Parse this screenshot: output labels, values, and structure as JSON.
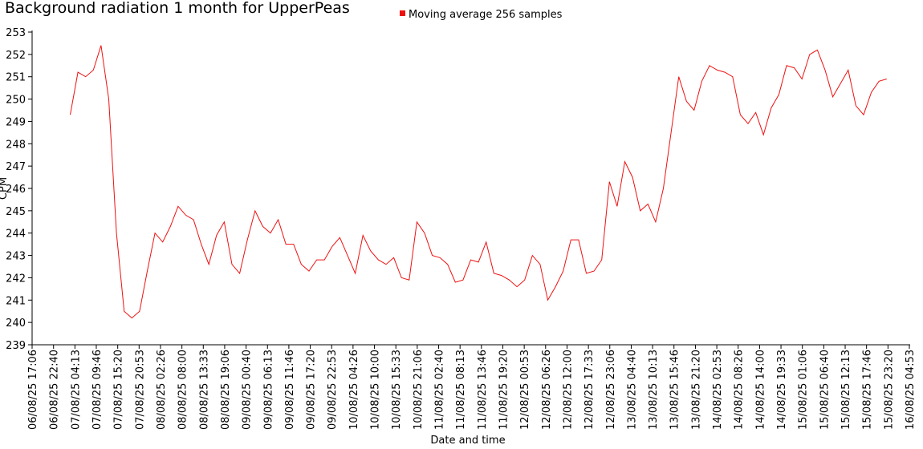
{
  "chart_data": {
    "type": "line",
    "title": "Background radiation 1 month for UpperPeas",
    "xlabel": "Date and time",
    "ylabel": "CPM",
    "series": [
      {
        "name": "Moving average 256 samples",
        "color": "#ee1111",
        "values": [
          249.3,
          251.2,
          251.0,
          251.3,
          252.4,
          250.0,
          244.0,
          240.5,
          240.2,
          240.5,
          242.3,
          244.0,
          243.6,
          244.3,
          245.2,
          244.8,
          244.6,
          243.5,
          242.6,
          243.9,
          244.5,
          242.6,
          242.2,
          243.7,
          245.0,
          244.3,
          244.0,
          244.6,
          243.5,
          243.5,
          242.6,
          242.3,
          242.8,
          242.8,
          243.4,
          243.8,
          243.0,
          242.2,
          243.9,
          243.2,
          242.8,
          242.6,
          242.9,
          242.0,
          241.9,
          244.5,
          244.0,
          243.0,
          242.9,
          242.6,
          241.8,
          241.9,
          242.8,
          242.7,
          243.6,
          242.2,
          242.1,
          241.9,
          241.6,
          241.9,
          243.0,
          242.6,
          241.0,
          241.6,
          242.3,
          243.7,
          243.7,
          242.2,
          242.3,
          242.8,
          246.3,
          245.2,
          247.2,
          246.5,
          245.0,
          245.3,
          244.5,
          246.0,
          248.5,
          251.0,
          249.9,
          249.5,
          250.8,
          251.5,
          251.3,
          251.2,
          251.0,
          249.3,
          248.9,
          249.4,
          248.4,
          249.6,
          250.2,
          251.5,
          251.4,
          250.9,
          252.0,
          252.2,
          251.3,
          250.1,
          250.7,
          251.3,
          249.7,
          249.3,
          250.3,
          250.8,
          250.9
        ]
      }
    ],
    "x": [
      "07/08/25 03:00",
      "07/08/25 05:00",
      "07/08/25 07:00",
      "07/08/25 09:00",
      "07/08/25 11:00",
      "07/08/25 13:00",
      "07/08/25 15:00",
      "07/08/25 17:00",
      "07/08/25 19:00",
      "07/08/25 21:00",
      "07/08/25 23:00",
      "08/08/25 01:00",
      "08/08/25 03:00",
      "08/08/25 05:00",
      "08/08/25 07:00",
      "08/08/25 09:00",
      "08/08/25 11:00",
      "08/08/25 13:00",
      "08/08/25 15:00",
      "08/08/25 17:00",
      "08/08/25 19:00",
      "08/08/25 21:00",
      "08/08/25 23:00",
      "09/08/25 01:00",
      "09/08/25 03:00",
      "09/08/25 05:00",
      "09/08/25 07:00",
      "09/08/25 09:00",
      "09/08/25 11:00",
      "09/08/25 13:00",
      "09/08/25 15:00",
      "09/08/25 17:00",
      "09/08/25 19:00",
      "09/08/25 21:00",
      "09/08/25 23:00",
      "10/08/25 01:00",
      "10/08/25 03:00",
      "10/08/25 05:00",
      "10/08/25 07:00",
      "10/08/25 09:00",
      "10/08/25 11:00",
      "10/08/25 13:00",
      "10/08/25 15:00",
      "10/08/25 17:00",
      "10/08/25 19:00",
      "10/08/25 21:00",
      "10/08/25 23:00",
      "11/08/25 01:00",
      "11/08/25 03:00",
      "11/08/25 05:00",
      "11/08/25 07:00",
      "11/08/25 09:00",
      "11/08/25 11:00",
      "11/08/25 13:00",
      "11/08/25 15:00",
      "11/08/25 17:00",
      "11/08/25 19:00",
      "11/08/25 21:00",
      "11/08/25 23:00",
      "12/08/25 01:00",
      "12/08/25 03:00",
      "12/08/25 05:00",
      "12/08/25 07:00",
      "12/08/25 09:00",
      "12/08/25 11:00",
      "12/08/25 13:00",
      "12/08/25 15:00",
      "12/08/25 17:00",
      "12/08/25 19:00",
      "12/08/25 21:00",
      "12/08/25 23:00",
      "13/08/25 01:00",
      "13/08/25 03:00",
      "13/08/25 05:00",
      "13/08/25 07:00",
      "13/08/25 09:00",
      "13/08/25 11:00",
      "13/08/25 13:00",
      "13/08/25 15:00",
      "13/08/25 17:00",
      "13/08/25 19:00",
      "13/08/25 21:00",
      "13/08/25 23:00",
      "14/08/25 01:00",
      "14/08/25 03:00",
      "14/08/25 05:00",
      "14/08/25 07:00",
      "14/08/25 09:00",
      "14/08/25 11:00",
      "14/08/25 13:00",
      "14/08/25 15:00",
      "14/08/25 17:00",
      "14/08/25 19:00",
      "14/08/25 21:00",
      "14/08/25 23:00",
      "15/08/25 01:00",
      "15/08/25 03:00",
      "15/08/25 05:00",
      "15/08/25 07:00",
      "15/08/25 09:00",
      "15/08/25 11:00",
      "15/08/25 13:00",
      "15/08/25 15:00",
      "15/08/25 17:00",
      "15/08/25 19:00",
      "15/08/25 21:00",
      "15/08/25 23:00"
    ],
    "xlim": [
      "06/08/25 17:06",
      "16/08/25 04:53"
    ],
    "xticks": [
      "06/08/25 17:06",
      "06/08/25 22:40",
      "07/08/25 04:13",
      "07/08/25 09:46",
      "07/08/25 15:20",
      "07/08/25 20:53",
      "08/08/25 02:26",
      "08/08/25 08:00",
      "08/08/25 13:33",
      "08/08/25 19:06",
      "09/08/25 00:40",
      "09/08/25 06:13",
      "09/08/25 11:46",
      "09/08/25 17:20",
      "09/08/25 22:53",
      "10/08/25 04:26",
      "10/08/25 10:00",
      "10/08/25 15:33",
      "10/08/25 21:06",
      "11/08/25 02:40",
      "11/08/25 08:13",
      "11/08/25 13:46",
      "11/08/25 19:20",
      "12/08/25 00:53",
      "12/08/25 06:26",
      "12/08/25 12:00",
      "12/08/25 17:33",
      "12/08/25 23:06",
      "13/08/25 04:40",
      "13/08/25 10:13",
      "13/08/25 15:46",
      "13/08/25 21:20",
      "14/08/25 02:53",
      "14/08/25 08:26",
      "14/08/25 14:00",
      "14/08/25 19:33",
      "15/08/25 01:06",
      "15/08/25 06:40",
      "15/08/25 12:13",
      "15/08/25 17:46",
      "15/08/25 23:20",
      "16/08/25 04:53"
    ],
    "ylim": [
      239,
      253
    ],
    "yticks": [
      239,
      240,
      241,
      242,
      243,
      244,
      245,
      246,
      247,
      248,
      249,
      250,
      251,
      252,
      253
    ],
    "grid": false
  }
}
